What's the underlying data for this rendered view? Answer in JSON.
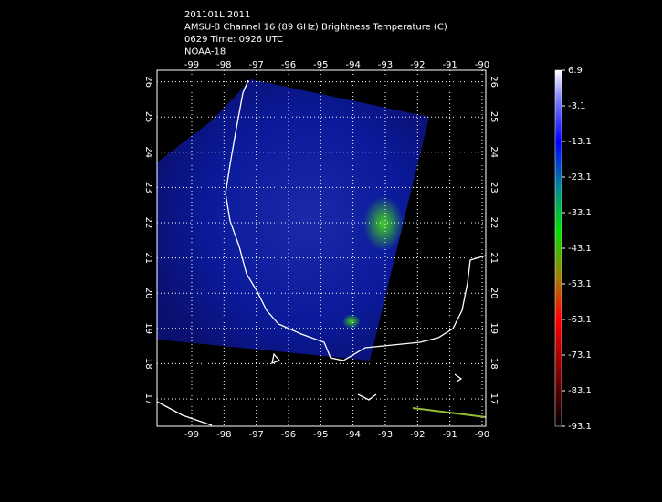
{
  "header": {
    "lines": [
      "201101L 2011",
      "AMSU-B Channel 16 (89 GHz) Brightness Temperature (C)",
      "0629 Time: 0926 UTC",
      "NOAA-18"
    ]
  },
  "map": {
    "lon_ticks": [
      -99,
      -98,
      -97,
      -96,
      -95,
      -94,
      -93,
      -92,
      -91,
      -90
    ],
    "lat_ticks": [
      17,
      18,
      19,
      20,
      21,
      22,
      23,
      24,
      25,
      26
    ]
  },
  "colorbar": {
    "ticks": [
      6.9,
      -3.1,
      -13.1,
      -23.1,
      -33.1,
      -43.1,
      -53.1,
      -63.1,
      -73.1,
      -83.1,
      -93.1
    ]
  }
}
